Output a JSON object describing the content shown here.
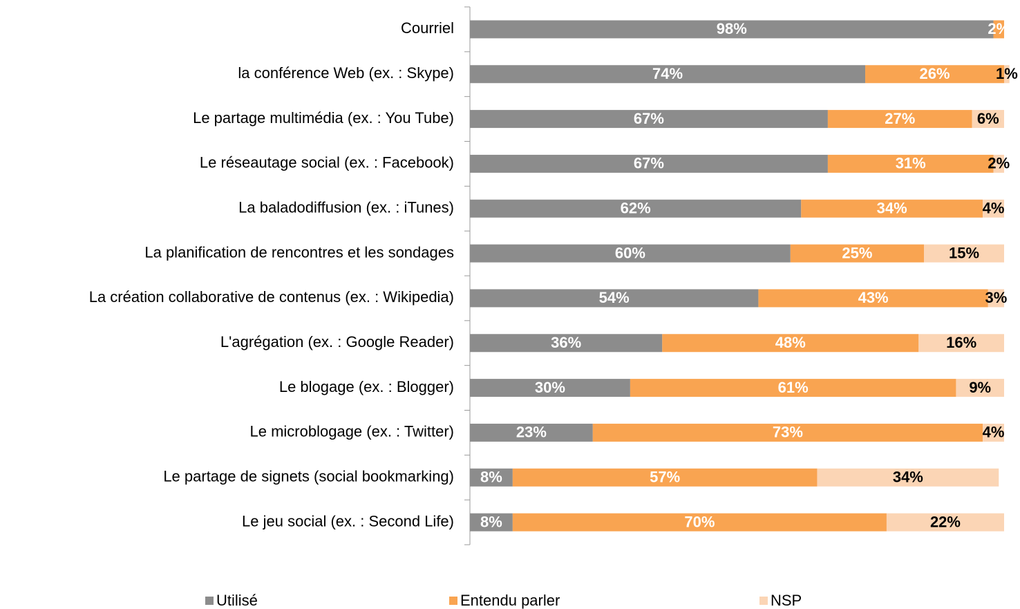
{
  "chart_data": {
    "type": "stacked_bar_horizontal",
    "categories": [
      "Courriel",
      "la conférence Web (ex. : Skype)",
      "Le partage multimédia (ex. : You Tube)",
      "Le réseautage social (ex. : Facebook)",
      "La baladodiffusion (ex. : iTunes)",
      "La planification de rencontres et les sondages",
      "La création collaborative de contenus (ex. : Wikipedia)",
      "L'agrégation (ex. : Google Reader)",
      "Le blogage (ex. : Blogger)",
      "Le microblogage (ex. : Twitter)",
      "Le partage de signets (social bookmarking)",
      "Le jeu social (ex. : Second Life)"
    ],
    "series": [
      {
        "name": "Utilisé",
        "color": "#8c8c8c",
        "label_color": "#ffffff",
        "values": [
          98,
          74,
          67,
          67,
          62,
          60,
          54,
          36,
          30,
          23,
          8,
          8
        ],
        "value_labels": [
          "98%",
          "74%",
          "67%",
          "67%",
          "62%",
          "60%",
          "54%",
          "36%",
          "30%",
          "23%",
          "8%",
          "8%"
        ]
      },
      {
        "name": "Entendu parler",
        "color": "#f9a451",
        "label_color": "#ffffff",
        "values": [
          2,
          26,
          27,
          31,
          34,
          25,
          43,
          48,
          61,
          73,
          57,
          70
        ],
        "value_labels": [
          "2%",
          "26%",
          "27%",
          "31%",
          "34%",
          "25%",
          "43%",
          "48%",
          "61%",
          "73%",
          "57%",
          "70%"
        ]
      },
      {
        "name": "NSP",
        "color": "#fbd5b5",
        "label_color": "#000000",
        "values": [
          null,
          1,
          6,
          2,
          4,
          15,
          3,
          16,
          9,
          4,
          34,
          22
        ],
        "value_labels": [
          null,
          "1%",
          "6%",
          "2%",
          "4%",
          "15%",
          "3%",
          "16%",
          "9%",
          "4%",
          "34%",
          "22%"
        ]
      }
    ],
    "xlim": [
      0,
      100
    ],
    "legend": "bottom"
  }
}
